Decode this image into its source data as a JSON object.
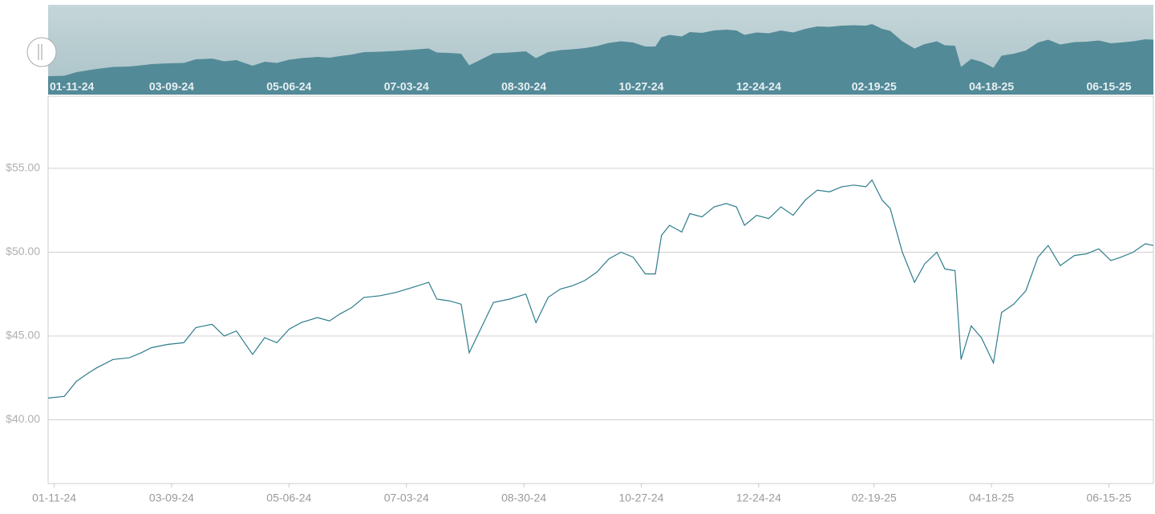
{
  "chart_data": {
    "type": "line",
    "color": "#2e7d8c",
    "grid": true,
    "navigator": true,
    "x": [
      "2024-01-08",
      "2024-01-16",
      "2024-01-22",
      "2024-01-28",
      "2024-02-01",
      "2024-02-09",
      "2024-02-17",
      "2024-02-23",
      "2024-02-28",
      "2024-03-07",
      "2024-03-15",
      "2024-03-21",
      "2024-03-29",
      "2024-04-04",
      "2024-04-10",
      "2024-04-18",
      "2024-04-24",
      "2024-04-30",
      "2024-05-06",
      "2024-05-12",
      "2024-05-20",
      "2024-05-26",
      "2024-05-31",
      "2024-06-06",
      "2024-06-12",
      "2024-06-20",
      "2024-06-28",
      "2024-07-06",
      "2024-07-14",
      "2024-07-18",
      "2024-07-24",
      "2024-07-30",
      "2024-08-03",
      "2024-08-09",
      "2024-08-15",
      "2024-08-23",
      "2024-08-31",
      "2024-09-05",
      "2024-09-11",
      "2024-09-17",
      "2024-09-23",
      "2024-09-29",
      "2024-10-05",
      "2024-10-11",
      "2024-10-17",
      "2024-10-23",
      "2024-10-29",
      "2024-11-03",
      "2024-11-06",
      "2024-11-10",
      "2024-11-16",
      "2024-11-20",
      "2024-11-26",
      "2024-12-02",
      "2024-12-08",
      "2024-12-13",
      "2024-12-17",
      "2024-12-23",
      "2024-12-29",
      "2025-01-04",
      "2025-01-10",
      "2025-01-16",
      "2025-01-22",
      "2025-01-28",
      "2025-02-03",
      "2025-02-09",
      "2025-02-15",
      "2025-02-18",
      "2025-02-23",
      "2025-02-27",
      "2025-03-05",
      "2025-03-11",
      "2025-03-16",
      "2025-03-22",
      "2025-03-26",
      "2025-03-31",
      "2025-04-03",
      "2025-04-08",
      "2025-04-13",
      "2025-04-19",
      "2025-04-23",
      "2025-04-29",
      "2025-05-05",
      "2025-05-11",
      "2025-05-16",
      "2025-05-22",
      "2025-05-29",
      "2025-06-04",
      "2025-06-10",
      "2025-06-16",
      "2025-06-21",
      "2025-06-27",
      "2025-07-03",
      "2025-07-07"
    ],
    "values": [
      41.3,
      41.4,
      42.3,
      42.8,
      43.1,
      43.6,
      43.7,
      44.0,
      44.3,
      44.5,
      44.6,
      45.5,
      45.7,
      45.0,
      45.3,
      43.9,
      44.9,
      44.6,
      45.4,
      45.8,
      46.1,
      45.9,
      46.3,
      46.7,
      47.3,
      47.4,
      47.6,
      47.9,
      48.2,
      47.2,
      47.1,
      46.9,
      44.0,
      45.5,
      47.0,
      47.2,
      47.5,
      45.8,
      47.3,
      47.8,
      48.0,
      48.3,
      48.8,
      49.6,
      50.0,
      49.7,
      48.7,
      48.7,
      51.0,
      51.6,
      51.2,
      52.3,
      52.1,
      52.7,
      52.9,
      52.7,
      51.6,
      52.2,
      52.0,
      52.7,
      52.2,
      53.1,
      53.7,
      53.6,
      53.9,
      54.0,
      53.9,
      54.3,
      53.1,
      52.6,
      50.0,
      48.2,
      49.3,
      50.0,
      49.0,
      48.9,
      43.6,
      45.6,
      44.9,
      43.4,
      46.4,
      46.9,
      47.7,
      49.7,
      50.4,
      49.2,
      49.8,
      49.9,
      50.2,
      49.5,
      49.7,
      50.0,
      50.5,
      50.4
    ],
    "xlim": [
      "2024-01-08",
      "2025-07-07"
    ],
    "xticks": [
      {
        "value": "2024-01-11",
        "label": "01-11-24"
      },
      {
        "value": "2024-03-09",
        "label": "03-09-24"
      },
      {
        "value": "2024-05-06",
        "label": "05-06-24"
      },
      {
        "value": "2024-07-03",
        "label": "07-03-24"
      },
      {
        "value": "2024-08-30",
        "label": "08-30-24"
      },
      {
        "value": "2024-10-27",
        "label": "10-27-24"
      },
      {
        "value": "2024-12-24",
        "label": "12-24-24"
      },
      {
        "value": "2025-02-19",
        "label": "02-19-25"
      },
      {
        "value": "2025-04-18",
        "label": "04-18-25"
      },
      {
        "value": "2025-06-15",
        "label": "06-15-25"
      }
    ],
    "ylim": [
      36.2,
      59.3
    ],
    "yticks": [
      {
        "value": 40,
        "label": "$40.00"
      },
      {
        "value": 45,
        "label": "$45.00"
      },
      {
        "value": 50,
        "label": "$50.00"
      },
      {
        "value": 55,
        "label": "$55.00"
      }
    ]
  }
}
